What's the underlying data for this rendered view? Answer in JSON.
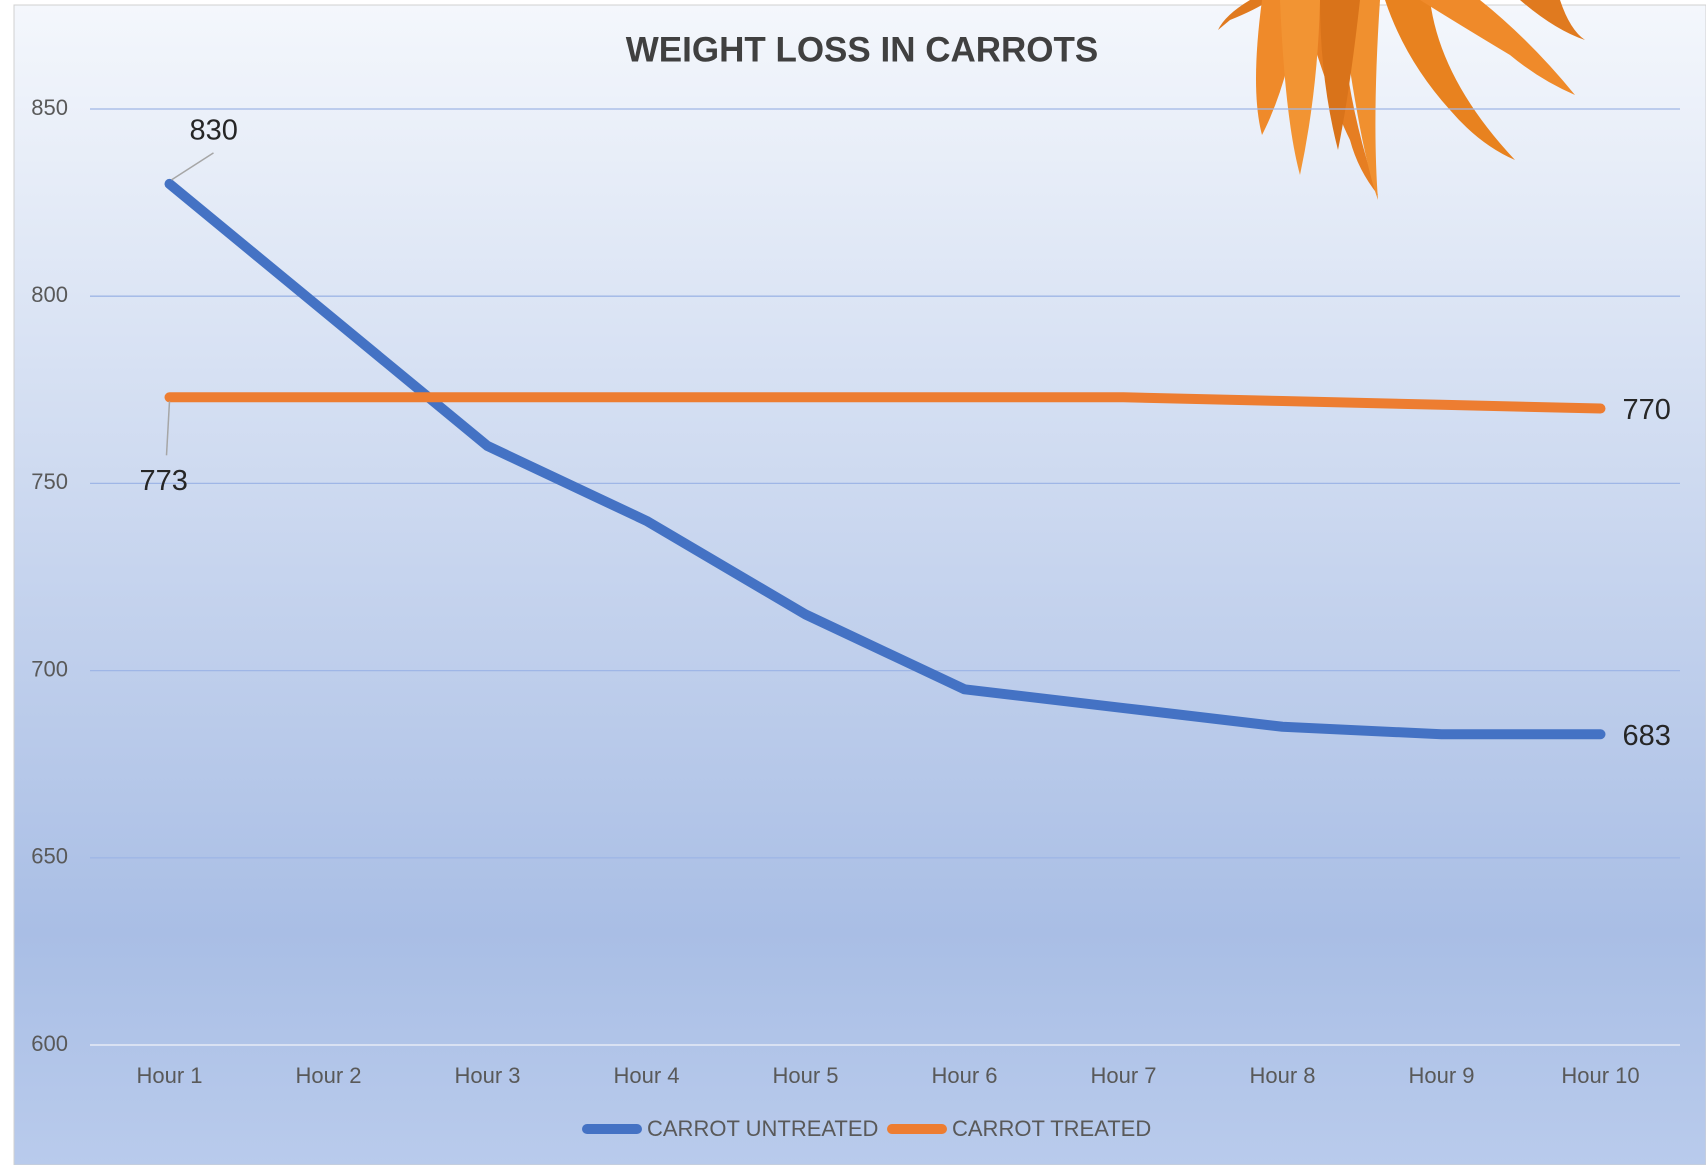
{
  "chart_data": {
    "type": "line",
    "title": "WEIGHT LOSS IN CARROTS",
    "categories": [
      "Hour 1",
      "Hour 2",
      "Hour 3",
      "Hour 4",
      "Hour 5",
      "Hour 6",
      "Hour 7",
      "Hour 8",
      "Hour 9",
      "Hour 10"
    ],
    "series": [
      {
        "name": "CARROT UNTREATED",
        "color": "#4472c4",
        "values": [
          830,
          795,
          760,
          740,
          715,
          695,
          690,
          685,
          683,
          683
        ],
        "value_labels": [
          "830",
          null,
          null,
          null,
          null,
          null,
          null,
          null,
          null,
          "683"
        ]
      },
      {
        "name": "CARROT TREATED",
        "color": "#ed7d31",
        "values": [
          773,
          773,
          773,
          773,
          773,
          773,
          773,
          772,
          771,
          770
        ],
        "value_labels": [
          "773",
          null,
          null,
          null,
          null,
          null,
          null,
          null,
          null,
          "770"
        ]
      }
    ],
    "ylim": [
      600,
      850
    ],
    "yticks": [
      600,
      650,
      700,
      750,
      800,
      850
    ],
    "grid": true,
    "legend": "bottom"
  }
}
